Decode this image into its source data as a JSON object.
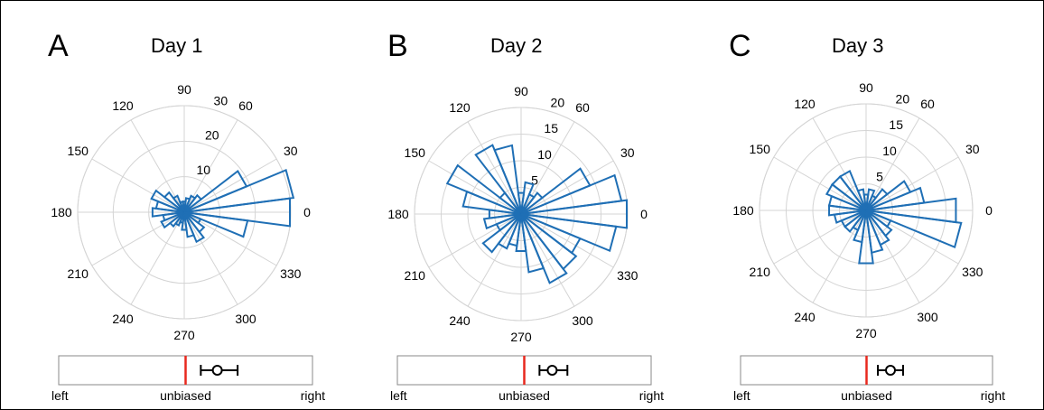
{
  "chart_data": [
    {
      "type": "polar-histogram",
      "panel": "A",
      "title": "Day 1",
      "angle_ticks": [
        "0",
        "30",
        "60",
        "90",
        "120",
        "150",
        "180",
        "210",
        "240",
        "270",
        "300",
        "330"
      ],
      "radial_ticks": [
        "10",
        "20",
        "30"
      ],
      "rmax": 30,
      "bin_width_deg": 15,
      "bins": [
        {
          "angle": 0,
          "value": 30
        },
        {
          "angle": 15,
          "value": 31
        },
        {
          "angle": 30,
          "value": 19
        },
        {
          "angle": 45,
          "value": 6
        },
        {
          "angle": 60,
          "value": 5
        },
        {
          "angle": 75,
          "value": 4
        },
        {
          "angle": 90,
          "value": 3
        },
        {
          "angle": 105,
          "value": 3
        },
        {
          "angle": 120,
          "value": 5
        },
        {
          "angle": 135,
          "value": 7
        },
        {
          "angle": 150,
          "value": 10
        },
        {
          "angle": 165,
          "value": 8
        },
        {
          "angle": 180,
          "value": 9
        },
        {
          "angle": 195,
          "value": 6
        },
        {
          "angle": 210,
          "value": 7
        },
        {
          "angle": 225,
          "value": 5
        },
        {
          "angle": 240,
          "value": 4
        },
        {
          "angle": 255,
          "value": 3
        },
        {
          "angle": 270,
          "value": 5
        },
        {
          "angle": 285,
          "value": 7
        },
        {
          "angle": 300,
          "value": 9
        },
        {
          "angle": 315,
          "value": 7
        },
        {
          "angle": 330,
          "value": 5
        },
        {
          "angle": 345,
          "value": 18
        }
      ],
      "bias": {
        "left_label": "left",
        "center_label": "unbiased",
        "right_label": "right",
        "mean": 0.25,
        "ci_low": 0.12,
        "ci_high": 0.41
      }
    },
    {
      "type": "polar-histogram",
      "panel": "B",
      "title": "Day 2",
      "angle_ticks": [
        "0",
        "30",
        "60",
        "90",
        "120",
        "150",
        "180",
        "210",
        "240",
        "270",
        "300",
        "330"
      ],
      "radial_ticks": [
        "5",
        "10",
        "15",
        "20"
      ],
      "rmax": 20,
      "bin_width_deg": 15,
      "bins": [
        {
          "angle": 0,
          "value": 20
        },
        {
          "angle": 15,
          "value": 19
        },
        {
          "angle": 30,
          "value": 14
        },
        {
          "angle": 45,
          "value": 5
        },
        {
          "angle": 60,
          "value": 4
        },
        {
          "angle": 75,
          "value": 6
        },
        {
          "angle": 90,
          "value": 4
        },
        {
          "angle": 105,
          "value": 13
        },
        {
          "angle": 120,
          "value": 14
        },
        {
          "angle": 135,
          "value": 5
        },
        {
          "angle": 150,
          "value": 15
        },
        {
          "angle": 165,
          "value": 11
        },
        {
          "angle": 180,
          "value": 6
        },
        {
          "angle": 195,
          "value": 7
        },
        {
          "angle": 210,
          "value": 5
        },
        {
          "angle": 225,
          "value": 9
        },
        {
          "angle": 240,
          "value": 7
        },
        {
          "angle": 255,
          "value": 6
        },
        {
          "angle": 270,
          "value": 7
        },
        {
          "angle": 285,
          "value": 11
        },
        {
          "angle": 300,
          "value": 14
        },
        {
          "angle": 315,
          "value": 13
        },
        {
          "angle": 330,
          "value": 12
        },
        {
          "angle": 345,
          "value": 18
        }
      ],
      "bias": {
        "left_label": "left",
        "center_label": "unbiased",
        "right_label": "right",
        "mean": 0.22,
        "ci_low": 0.12,
        "ci_high": 0.34
      }
    },
    {
      "type": "polar-histogram",
      "panel": "C",
      "title": "Day 3",
      "angle_ticks": [
        "0",
        "30",
        "60",
        "90",
        "120",
        "150",
        "180",
        "210",
        "240",
        "270",
        "300",
        "330"
      ],
      "radial_ticks": [
        "5",
        "10",
        "15",
        "20"
      ],
      "rmax": 20,
      "bin_width_deg": 15,
      "bins": [
        {
          "angle": 0,
          "value": 17
        },
        {
          "angle": 15,
          "value": 11
        },
        {
          "angle": 30,
          "value": 9
        },
        {
          "angle": 45,
          "value": 5
        },
        {
          "angle": 60,
          "value": 3
        },
        {
          "angle": 75,
          "value": 4
        },
        {
          "angle": 90,
          "value": 3
        },
        {
          "angle": 105,
          "value": 4
        },
        {
          "angle": 120,
          "value": 8
        },
        {
          "angle": 135,
          "value": 8
        },
        {
          "angle": 150,
          "value": 8
        },
        {
          "angle": 165,
          "value": 7
        },
        {
          "angle": 180,
          "value": 7
        },
        {
          "angle": 195,
          "value": 6
        },
        {
          "angle": 210,
          "value": 5
        },
        {
          "angle": 225,
          "value": 5
        },
        {
          "angle": 240,
          "value": 4
        },
        {
          "angle": 255,
          "value": 6
        },
        {
          "angle": 270,
          "value": 10
        },
        {
          "angle": 285,
          "value": 8
        },
        {
          "angle": 300,
          "value": 7
        },
        {
          "angle": 315,
          "value": 6
        },
        {
          "angle": 330,
          "value": 5
        },
        {
          "angle": 345,
          "value": 18
        }
      ],
      "bias": {
        "left_label": "left",
        "center_label": "unbiased",
        "right_label": "right",
        "mean": 0.19,
        "ci_low": 0.09,
        "ci_high": 0.29
      }
    }
  ],
  "colors": {
    "bar_stroke": "#1f6fb5",
    "grid": "#d4d4d4",
    "unbiased_line": "#e8281e"
  }
}
